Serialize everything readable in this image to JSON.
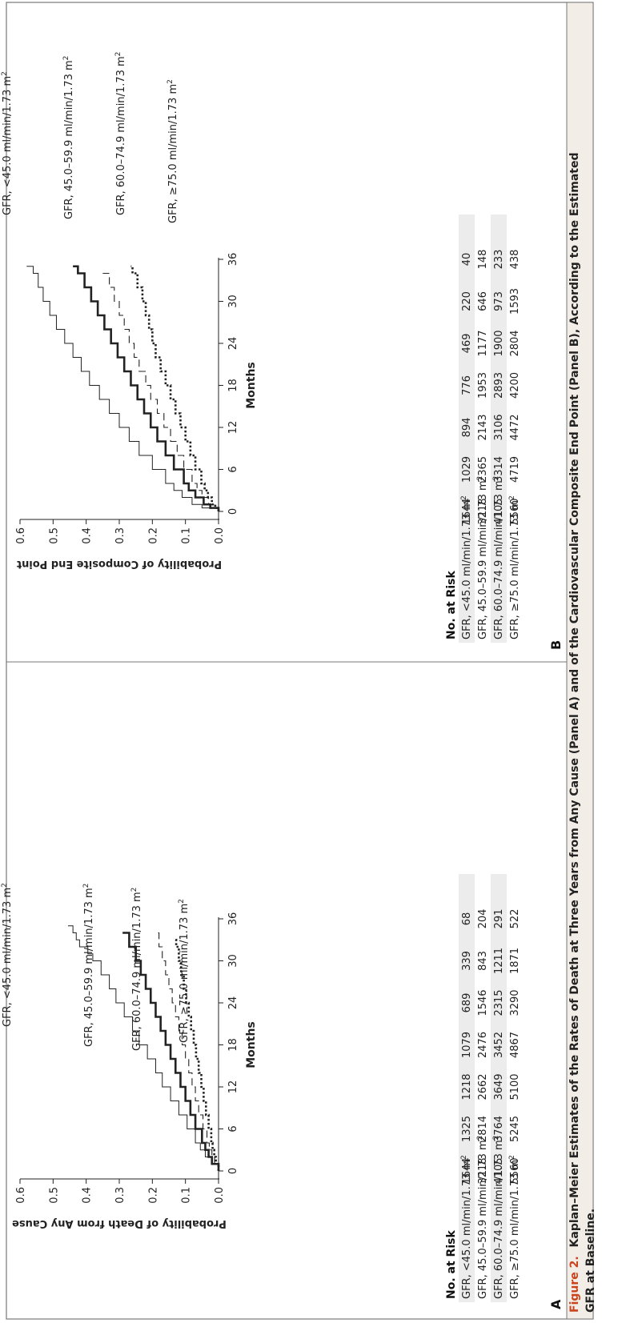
{
  "figure": {
    "caption_label": "Figure 2.",
    "caption_text": "Kaplan–Meier Estimates of the Rates of Death at Three Years from Any Cause (Panel A) and of the Cardiovascular Composite End Point (Panel B), According to the Estimated",
    "caption_text_2": "GFR at Baseline.",
    "colors": {
      "caption_bg": "#f2ede6",
      "caption_label": "#c8451e",
      "frame": "#777777",
      "risk_row_shade": "#ececec"
    }
  },
  "chart_data": [
    {
      "type": "line",
      "panel_label": "A",
      "ylabel": "Probability of Death from Any Cause",
      "xlabel": "Months",
      "xlim": [
        0,
        36
      ],
      "ylim": [
        0,
        0.6
      ],
      "xticks": [
        "0",
        "6",
        "12",
        "18",
        "24",
        "30",
        "36"
      ],
      "yticks": [
        "0.0",
        "0.1",
        "0.2",
        "0.3",
        "0.4",
        "0.5",
        "0.6"
      ],
      "grid": false,
      "series": [
        {
          "name": "GFR, <45.0 ml/min/1.73 m²",
          "style": "thin-solid",
          "x": [
            0,
            1,
            2,
            3,
            4,
            6,
            8,
            10,
            12,
            14,
            16,
            18,
            20,
            22,
            24,
            26,
            28,
            30,
            31,
            32,
            33,
            34,
            35
          ],
          "y": [
            0,
            0.02,
            0.04,
            0.055,
            0.07,
            0.095,
            0.12,
            0.145,
            0.17,
            0.19,
            0.215,
            0.24,
            0.26,
            0.285,
            0.31,
            0.33,
            0.355,
            0.38,
            0.395,
            0.42,
            0.43,
            0.44,
            0.455
          ]
        },
        {
          "name": "GFR, 45.0–59.9 ml/min/1.73 m²",
          "style": "thick-solid",
          "x": [
            0,
            1,
            2,
            3,
            4,
            6,
            8,
            10,
            12,
            14,
            16,
            18,
            20,
            22,
            24,
            26,
            28,
            30,
            32,
            34
          ],
          "y": [
            0,
            0.02,
            0.03,
            0.04,
            0.05,
            0.07,
            0.085,
            0.1,
            0.115,
            0.13,
            0.145,
            0.16,
            0.175,
            0.19,
            0.205,
            0.22,
            0.235,
            0.25,
            0.27,
            0.29
          ]
        },
        {
          "name": "GFR, 60.0–74.9 ml/min/1.73 m²",
          "style": "dashed",
          "x": [
            0,
            1,
            2,
            3,
            4,
            6,
            8,
            10,
            12,
            14,
            16,
            18,
            20,
            22,
            24,
            26,
            28,
            30,
            32,
            34
          ],
          "y": [
            0,
            0.012,
            0.02,
            0.028,
            0.035,
            0.047,
            0.06,
            0.07,
            0.08,
            0.09,
            0.1,
            0.11,
            0.12,
            0.13,
            0.14,
            0.15,
            0.16,
            0.17,
            0.18,
            0.19
          ]
        },
        {
          "name": "GFR, ≥75.0 ml/min/1.73 m²",
          "style": "dotted",
          "x": [
            0,
            1,
            2,
            3,
            4,
            6,
            8,
            10,
            12,
            14,
            16,
            18,
            20,
            22,
            24,
            26,
            28,
            30,
            32,
            33
          ],
          "y": [
            0,
            0.008,
            0.013,
            0.018,
            0.022,
            0.03,
            0.038,
            0.045,
            0.052,
            0.06,
            0.068,
            0.075,
            0.083,
            0.09,
            0.098,
            0.105,
            0.113,
            0.12,
            0.128,
            0.13
          ]
        }
      ],
      "risk_table": {
        "title": "No. at Risk",
        "rows": [
          {
            "label": "GFR, <45.0 ml/min/1.73 m²",
            "values": [
              "1644",
              "1325",
              "1218",
              "1079",
              "689",
              "339",
              "68"
            ]
          },
          {
            "label": "GFR, 45.0–59.9 ml/min/1.73 m²",
            "values": [
              "3218",
              "2814",
              "2662",
              "2476",
              "1546",
              "843",
              "204"
            ]
          },
          {
            "label": "GFR, 60.0–74.9 ml/min/1.73 m²",
            "values": [
              "4105",
              "3764",
              "3649",
              "3452",
              "2315",
              "1211",
              "291"
            ]
          },
          {
            "label": "GFR, ≥75.0 ml/min/1.73 m²",
            "values": [
              "5560",
              "5245",
              "5100",
              "4867",
              "3290",
              "1871",
              "522"
            ]
          }
        ]
      }
    },
    {
      "type": "line",
      "panel_label": "B",
      "ylabel": "Probability of Composite End Point",
      "xlabel": "Months",
      "xlim": [
        0,
        36
      ],
      "ylim": [
        0,
        0.6
      ],
      "xticks": [
        "0",
        "6",
        "12",
        "18",
        "24",
        "30",
        "36"
      ],
      "yticks": [
        "0.0",
        "0.1",
        "0.2",
        "0.3",
        "0.4",
        "0.5",
        "0.6"
      ],
      "grid": false,
      "series": [
        {
          "name": "GFR, <45.0 ml/min/1.73 m²",
          "style": "thin-solid",
          "x": [
            0,
            0.5,
            1,
            2,
            3,
            4,
            6,
            8,
            10,
            12,
            14,
            16,
            18,
            20,
            22,
            24,
            26,
            28,
            30,
            32,
            34,
            35
          ],
          "y": [
            0,
            0.05,
            0.08,
            0.11,
            0.135,
            0.16,
            0.2,
            0.24,
            0.27,
            0.3,
            0.33,
            0.36,
            0.39,
            0.415,
            0.44,
            0.465,
            0.49,
            0.51,
            0.53,
            0.545,
            0.56,
            0.58
          ]
        },
        {
          "name": "GFR, 45.0–59.9 ml/min/1.73 m²",
          "style": "thick-solid",
          "x": [
            0,
            0.5,
            1,
            2,
            3,
            4,
            6,
            8,
            10,
            12,
            14,
            16,
            18,
            20,
            22,
            24,
            26,
            28,
            30,
            32,
            34,
            35
          ],
          "y": [
            0,
            0.025,
            0.045,
            0.07,
            0.09,
            0.105,
            0.135,
            0.16,
            0.185,
            0.205,
            0.225,
            0.245,
            0.265,
            0.285,
            0.305,
            0.325,
            0.345,
            0.365,
            0.385,
            0.405,
            0.425,
            0.44
          ]
        },
        {
          "name": "GFR, 60.0–74.9 ml/min/1.73 m²",
          "style": "dashed",
          "x": [
            0,
            0.5,
            1,
            2,
            3,
            4,
            6,
            8,
            10,
            12,
            14,
            16,
            18,
            20,
            22,
            24,
            26,
            28,
            30,
            32,
            34
          ],
          "y": [
            0,
            0.015,
            0.03,
            0.05,
            0.065,
            0.08,
            0.105,
            0.125,
            0.145,
            0.165,
            0.185,
            0.205,
            0.22,
            0.24,
            0.255,
            0.27,
            0.285,
            0.3,
            0.315,
            0.33,
            0.35
          ]
        },
        {
          "name": "GFR, ≥75.0 ml/min/1.73 m²",
          "style": "dotted",
          "x": [
            0,
            0.5,
            1,
            2,
            3,
            4,
            6,
            8,
            10,
            12,
            14,
            16,
            18,
            20,
            22,
            24,
            26,
            28,
            30,
            32,
            34,
            35
          ],
          "y": [
            0,
            0.01,
            0.02,
            0.032,
            0.042,
            0.052,
            0.07,
            0.085,
            0.1,
            0.115,
            0.13,
            0.145,
            0.16,
            0.175,
            0.19,
            0.2,
            0.21,
            0.22,
            0.23,
            0.245,
            0.26,
            0.265
          ]
        }
      ],
      "risk_table": {
        "title": "No. at Risk",
        "rows": [
          {
            "label": "GFR, <45.0 ml/min/1.73 m²",
            "values": [
              "1644",
              "1029",
              "894",
              "776",
              "469",
              "220",
              "40"
            ]
          },
          {
            "label": "GFR, 45.0–59.9 ml/min/1.73 m²",
            "values": [
              "3218",
              "2365",
              "2143",
              "1953",
              "1177",
              "646",
              "148"
            ]
          },
          {
            "label": "GFR, 60.0–74.9 ml/min/1.73 m²",
            "values": [
              "4105",
              "3314",
              "3106",
              "2893",
              "1900",
              "973",
              "233"
            ]
          },
          {
            "label": "GFR, ≥75.0 ml/min/1.73 m²",
            "values": [
              "5560",
              "4719",
              "4472",
              "4200",
              "2804",
              "1593",
              "438"
            ]
          }
        ]
      }
    }
  ]
}
